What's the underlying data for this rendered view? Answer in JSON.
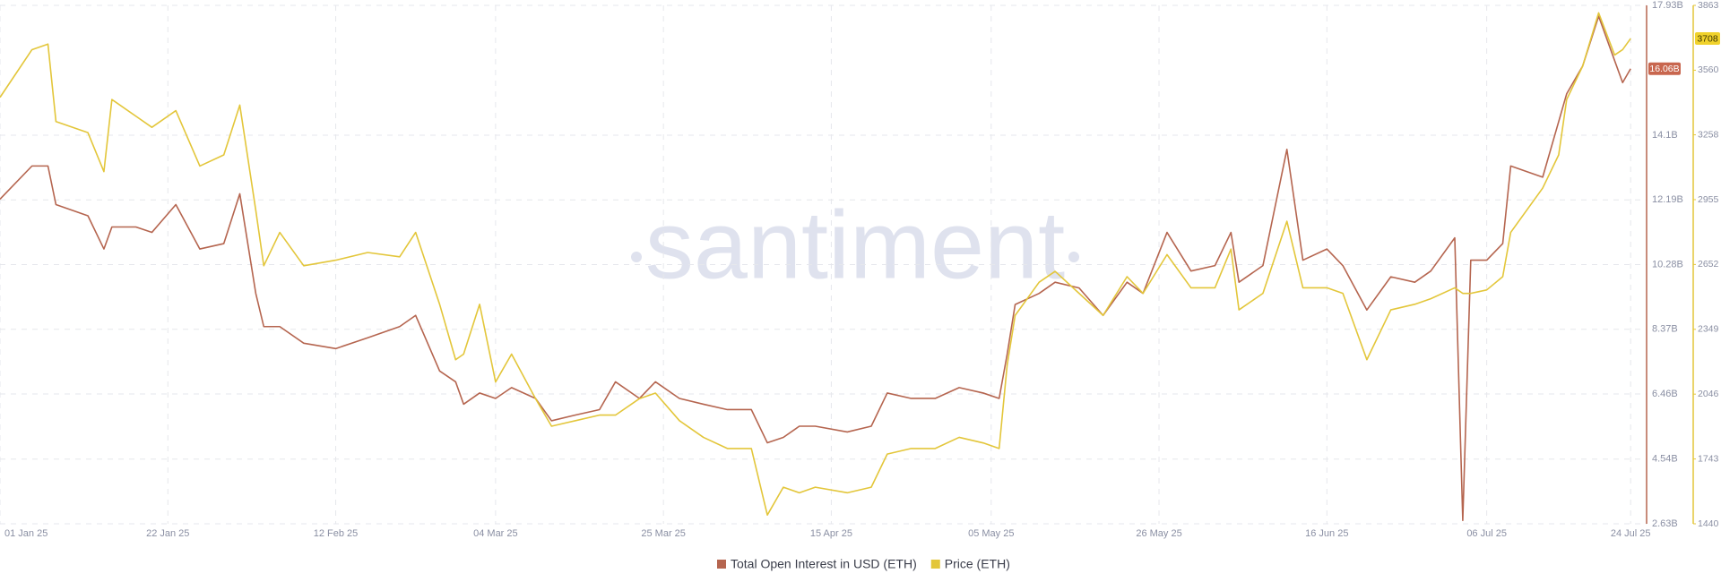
{
  "chart_data": {
    "type": "line",
    "watermark": "santiment",
    "x": [
      "2025-01-01",
      "2025-01-05",
      "2025-01-07",
      "2025-01-08",
      "2025-01-12",
      "2025-01-14",
      "2025-01-15",
      "2025-01-18",
      "2025-01-20",
      "2025-01-23",
      "2025-01-26",
      "2025-01-29",
      "2025-01-31",
      "2025-02-02",
      "2025-02-03",
      "2025-02-05",
      "2025-02-08",
      "2025-02-12",
      "2025-02-16",
      "2025-02-20",
      "2025-02-22",
      "2025-02-25",
      "2025-02-27",
      "2025-02-28",
      "2025-03-02",
      "2025-03-04",
      "2025-03-06",
      "2025-03-09",
      "2025-03-11",
      "2025-03-14",
      "2025-03-17",
      "2025-03-19",
      "2025-03-22",
      "2025-03-24",
      "2025-03-27",
      "2025-03-30",
      "2025-04-02",
      "2025-04-05",
      "2025-04-07",
      "2025-04-09",
      "2025-04-11",
      "2025-04-13",
      "2025-04-17",
      "2025-04-20",
      "2025-04-22",
      "2025-04-25",
      "2025-04-28",
      "2025-05-01",
      "2025-05-04",
      "2025-05-06",
      "2025-05-07",
      "2025-05-08",
      "2025-05-11",
      "2025-05-13",
      "2025-05-16",
      "2025-05-19",
      "2025-05-22",
      "2025-05-24",
      "2025-05-27",
      "2025-05-30",
      "2025-06-02",
      "2025-06-04",
      "2025-06-05",
      "2025-06-08",
      "2025-06-11",
      "2025-06-13",
      "2025-06-16",
      "2025-06-18",
      "2025-06-21",
      "2025-06-24",
      "2025-06-27",
      "2025-06-29",
      "2025-07-02",
      "2025-07-03",
      "2025-07-04",
      "2025-07-06",
      "2025-07-08",
      "2025-07-09",
      "2025-07-13",
      "2025-07-15",
      "2025-07-16",
      "2025-07-18",
      "2025-07-20",
      "2025-07-22",
      "2025-07-23",
      "2025-07-24"
    ],
    "series": [
      {
        "name": "Total Open Interest in USD (ETH)",
        "color": "#b5654f",
        "last_label": "16.06B",
        "values": [
          12.21,
          13.19,
          13.19,
          12.05,
          11.72,
          10.74,
          11.39,
          11.39,
          11.23,
          12.05,
          10.74,
          10.9,
          12.37,
          9.43,
          8.45,
          8.45,
          7.96,
          7.8,
          8.12,
          8.45,
          8.78,
          7.14,
          6.82,
          6.16,
          6.49,
          6.33,
          6.65,
          6.33,
          5.67,
          5.84,
          6.0,
          6.82,
          6.33,
          6.82,
          6.33,
          6.16,
          6.0,
          6.0,
          5.02,
          5.18,
          5.51,
          5.51,
          5.34,
          5.51,
          6.49,
          6.33,
          6.33,
          6.65,
          6.49,
          6.33,
          7.63,
          9.1,
          9.43,
          9.76,
          9.59,
          8.78,
          9.76,
          9.43,
          11.23,
          10.09,
          10.25,
          11.23,
          9.76,
          10.25,
          13.68,
          10.41,
          10.74,
          10.25,
          8.94,
          9.92,
          9.76,
          10.09,
          11.07,
          2.73,
          10.41,
          10.41,
          10.9,
          13.19,
          12.86,
          14.5,
          15.32,
          16.14,
          17.61,
          16.3,
          15.65,
          16.06
        ]
      },
      {
        "name": "Price (ETH)",
        "color": "#e3c63a",
        "axis": "y2",
        "last_label": "3708",
        "values": [
          3433,
          3656,
          3682,
          3320,
          3268,
          3086,
          3423,
          3345,
          3293,
          3371,
          3112,
          3164,
          3397,
          2905,
          2646,
          2802,
          2646,
          2672,
          2708,
          2688,
          2802,
          2466,
          2207,
          2233,
          2466,
          2103,
          2233,
          2025,
          1896,
          1922,
          1948,
          1948,
          2025,
          2051,
          1922,
          1844,
          1792,
          1792,
          1481,
          1611,
          1585,
          1611,
          1585,
          1611,
          1766,
          1792,
          1792,
          1844,
          1818,
          1792,
          2181,
          2414,
          2569,
          2620,
          2517,
          2414,
          2595,
          2517,
          2698,
          2543,
          2543,
          2724,
          2440,
          2517,
          2854,
          2543,
          2543,
          2517,
          2207,
          2440,
          2466,
          2492,
          2543,
          2517,
          2517,
          2533,
          2595,
          2802,
          3009,
          3164,
          3423,
          3579,
          3828,
          3631,
          3656,
          3708
        ]
      }
    ],
    "xlim": [
      "2025-01-01",
      "2025-07-26"
    ],
    "xticks": [
      {
        "value": "2025-01-01",
        "label": "01 Jan 25"
      },
      {
        "value": "2025-01-22",
        "label": "22 Jan 25"
      },
      {
        "value": "2025-02-12",
        "label": "12 Feb 25"
      },
      {
        "value": "2025-03-04",
        "label": "04 Mar 25"
      },
      {
        "value": "2025-03-25",
        "label": "25 Mar 25"
      },
      {
        "value": "2025-04-15",
        "label": "15 Apr 25"
      },
      {
        "value": "2025-05-05",
        "label": "05 May 25"
      },
      {
        "value": "2025-05-26",
        "label": "26 May 25"
      },
      {
        "value": "2025-06-16",
        "label": "16 Jun 25"
      },
      {
        "value": "2025-07-06",
        "label": "06 Jul 25"
      },
      {
        "value": "2025-07-24",
        "label": "24 Jul 25"
      }
    ],
    "ylim": [
      2.63,
      17.93
    ],
    "yticks": [
      {
        "value": 2.63,
        "label": "2.63B"
      },
      {
        "value": 4.54,
        "label": "4.54B"
      },
      {
        "value": 6.46,
        "label": "6.46B"
      },
      {
        "value": 8.37,
        "label": "8.37B"
      },
      {
        "value": 10.28,
        "label": "10.28B"
      },
      {
        "value": 12.19,
        "label": "12.19B"
      },
      {
        "value": 14.1,
        "label": "14.1B"
      },
      {
        "value": 17.93,
        "label": "17.93B"
      }
    ],
    "y2lim": [
      1440,
      3863
    ],
    "y2ticks": [
      1440,
      1743,
      2046,
      2349,
      2652,
      2955,
      3258,
      3560,
      3863
    ],
    "grid": true
  }
}
